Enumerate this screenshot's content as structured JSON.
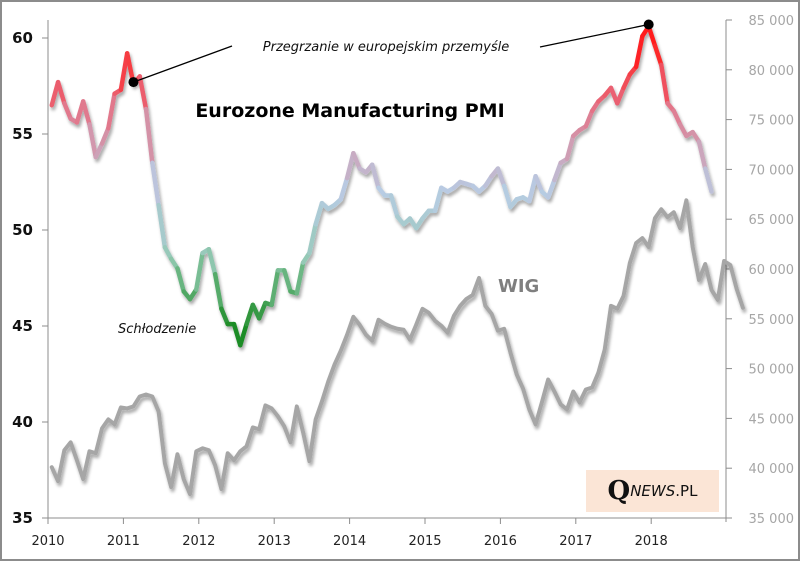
{
  "chart_data": {
    "type": "line",
    "title": "Eurozone Manufacturing PMI",
    "xlabel": "",
    "ylabel": "",
    "y2label": "",
    "x_start": "2010-01",
    "x_step": "month",
    "x_ticks": [
      "2010",
      "2011",
      "2012",
      "2013",
      "2014",
      "2015",
      "2016",
      "2017",
      "2018"
    ],
    "xlim": [
      2010,
      2019
    ],
    "y_ticks": [
      "35",
      "40",
      "45",
      "50",
      "55",
      "60"
    ],
    "ylim": [
      35,
      60
    ],
    "y2_ticks": [
      "35 000",
      "40 000",
      "45 000",
      "50 000",
      "55 000",
      "60 000",
      "65 000",
      "70 000",
      "75 000",
      "80 000",
      "85 000"
    ],
    "y2lim": [
      35000,
      85000
    ],
    "grid": false,
    "legend": "none",
    "series": [
      {
        "name": "Eurozone Manufacturing PMI",
        "axis": "left",
        "color_scale": {
          "high": "#ff1f1f",
          "mid": "#b8cce4",
          "low": "#1e8c28"
        },
        "values": [
          56.5,
          57.7,
          56.6,
          55.8,
          55.6,
          56.7,
          55.5,
          53.8,
          54.5,
          55.3,
          57.1,
          57.3,
          59.2,
          57.6,
          58.0,
          56.3,
          53.5,
          51.3,
          49.1,
          48.5,
          48.0,
          46.8,
          46.4,
          46.9,
          48.8,
          49.0,
          47.7,
          45.9,
          45.1,
          45.1,
          44.0,
          45.1,
          46.1,
          45.4,
          46.2,
          46.1,
          47.9,
          47.9,
          46.8,
          46.7,
          48.3,
          48.8,
          50.3,
          51.4,
          51.1,
          51.3,
          51.6,
          52.7,
          54.0,
          53.2,
          53.0,
          53.4,
          52.2,
          51.8,
          51.8,
          50.7,
          50.3,
          50.6,
          50.1,
          50.6,
          51.0,
          51.0,
          52.2,
          52.0,
          52.2,
          52.5,
          52.4,
          52.3,
          52.0,
          52.3,
          52.8,
          53.2,
          52.3,
          51.2,
          51.6,
          51.7,
          51.5,
          52.8,
          52.0,
          51.7,
          52.6,
          53.5,
          53.7,
          54.9,
          55.2,
          55.4,
          56.2,
          56.7,
          57.0,
          57.4,
          56.6,
          57.4,
          58.1,
          58.5,
          60.1,
          60.6,
          59.6,
          58.6,
          56.6,
          56.2,
          55.5,
          54.9,
          55.1,
          54.6,
          53.2,
          52.0
        ]
      },
      {
        "name": "WIG",
        "axis": "right",
        "color": "#a6a6a6",
        "values": [
          40100,
          38700,
          41800,
          42600,
          40800,
          38900,
          41700,
          41500,
          44000,
          44900,
          44400,
          46100,
          46000,
          46200,
          47200,
          47400,
          47200,
          45700,
          40500,
          38100,
          41400,
          38900,
          37400,
          41700,
          42000,
          41800,
          40300,
          37900,
          41500,
          40800,
          41700,
          42200,
          44100,
          43900,
          46300,
          46000,
          45200,
          44200,
          42600,
          46200,
          43600,
          40700,
          44900,
          46700,
          48700,
          50400,
          51800,
          53400,
          55200,
          54400,
          53400,
          52800,
          54900,
          54500,
          54200,
          54000,
          53900,
          52900,
          54400,
          56000,
          55600,
          54800,
          54300,
          53600,
          55300,
          56300,
          57000,
          57400,
          59100,
          56300,
          55500,
          53800,
          54000,
          51600,
          49400,
          48000,
          45900,
          44400,
          46600,
          48900,
          47700,
          46400,
          45900,
          47700,
          46600,
          47900,
          48100,
          49600,
          51900,
          56300,
          56000,
          57300,
          60600,
          62600,
          63100,
          62200,
          65100,
          66000,
          65200,
          65700,
          64100,
          66900,
          62200,
          58900,
          60500,
          57900,
          56900,
          60800,
          60400,
          58000,
          56100
        ]
      }
    ],
    "annotations": [
      {
        "text": "Przegrzanie w europejskim przemyśle",
        "points": [
          "2011-02",
          "2017-12"
        ]
      },
      {
        "text": "Schłodzenie",
        "near": "2011-09"
      },
      {
        "text": "WIG",
        "series_label": "WIG"
      }
    ]
  },
  "watermark": {
    "q": "Q",
    "news": "NEWS",
    "pl": ".PL"
  }
}
